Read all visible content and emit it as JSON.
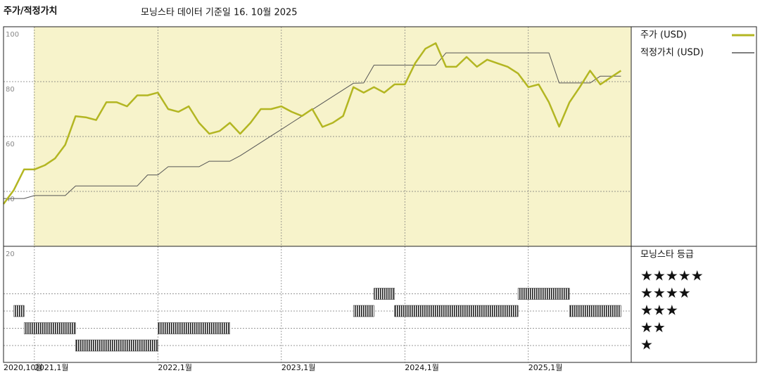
{
  "chart_data": {
    "type": "line",
    "title": "주가/적정가치",
    "subtitle": "모닝스타 데이터 기준일 16. 10월 2025",
    "x": [
      "2020-10",
      "2020-11",
      "2020-12",
      "2021-01",
      "2021-02",
      "2021-03",
      "2021-04",
      "2021-05",
      "2021-06",
      "2021-07",
      "2021-08",
      "2021-09",
      "2021-10",
      "2021-11",
      "2021-12",
      "2022-01",
      "2022-02",
      "2022-03",
      "2022-04",
      "2022-05",
      "2022-06",
      "2022-07",
      "2022-08",
      "2022-09",
      "2022-10",
      "2022-11",
      "2022-12",
      "2023-01",
      "2023-02",
      "2023-03",
      "2023-04",
      "2023-05",
      "2023-06",
      "2023-07",
      "2023-08",
      "2023-09",
      "2023-10",
      "2023-11",
      "2023-12",
      "2024-01",
      "2024-02",
      "2024-03",
      "2024-04",
      "2024-05",
      "2024-06",
      "2024-07",
      "2024-08",
      "2024-09",
      "2024-10",
      "2024-11",
      "2024-12",
      "2025-01",
      "2025-02",
      "2025-03",
      "2025-04",
      "2025-05",
      "2025-06",
      "2025-07",
      "2025-08",
      "2025-09",
      "2025-10"
    ],
    "series": [
      {
        "name": "주가 (USD)",
        "color": "#b3b622",
        "width": 2.5,
        "values": [
          35.4,
          40.5,
          48,
          48,
          49.5,
          52,
          57,
          67.4,
          67,
          66,
          72.5,
          72.5,
          71,
          75,
          75,
          76,
          70,
          69,
          71,
          65,
          61,
          62,
          65,
          61,
          65,
          70,
          70,
          71,
          69,
          67.5,
          70,
          63.5,
          65,
          67.5,
          78,
          76,
          78,
          76,
          79,
          79,
          86.7,
          92,
          94,
          85.4,
          85.4,
          89,
          85.4,
          88,
          86.7,
          85.4,
          83,
          78,
          79,
          72.5,
          63.6,
          72.5,
          78,
          84,
          79,
          81.5,
          84
        ]
      },
      {
        "name": "적정가치 (USD)",
        "color": "#555555",
        "width": 1,
        "values": [
          37.4,
          37.4,
          37.4,
          38.5,
          38.5,
          38.5,
          38.5,
          42,
          42,
          42,
          42,
          42,
          42,
          42,
          46,
          46,
          49,
          49,
          49,
          49,
          51,
          51,
          51,
          53,
          55.4,
          57.8,
          60.2,
          62.6,
          65,
          67.4,
          69.8,
          72.2,
          74.6,
          77,
          79.4,
          79.5,
          86,
          86,
          86,
          86,
          86,
          86,
          86,
          90.5,
          90.5,
          90.5,
          90.5,
          90.5,
          90.5,
          90.5,
          90.5,
          90.5,
          90.5,
          90.5,
          79.5,
          79.5,
          79.5,
          79.5,
          82,
          82,
          82
        ]
      }
    ],
    "xlim": [
      "2020-10",
      "2025-11"
    ],
    "xticks": [
      {
        "value": "2020-10",
        "label": "2020,10월"
      },
      {
        "value": "2021-01",
        "label": "2021,1월"
      },
      {
        "value": "2022-01",
        "label": "2022,1월"
      },
      {
        "value": "2023-01",
        "label": "2023,1월"
      },
      {
        "value": "2024-01",
        "label": "2024,1월"
      },
      {
        "value": "2025-01",
        "label": "2025,1월"
      }
    ],
    "ylim": [
      20,
      100
    ],
    "yticks": [
      20,
      40,
      60,
      80,
      100
    ],
    "grid": true,
    "legend": "right",
    "ratings": {
      "title": "모닝스타 등급",
      "levels": [
        {
          "stars": 5,
          "label": "★★★★★"
        },
        {
          "stars": 4,
          "label": "★★★★"
        },
        {
          "stars": 3,
          "label": "★★★"
        },
        {
          "stars": 2,
          "label": "★★"
        },
        {
          "stars": 1,
          "label": "★"
        }
      ],
      "color": "#222222",
      "periods": [
        {
          "start": "2020-11",
          "end": "2020-12",
          "stars": 3
        },
        {
          "start": "2020-12",
          "end": "2021-05",
          "stars": 2
        },
        {
          "start": "2021-05",
          "end": "2022-01",
          "stars": 1
        },
        {
          "start": "2022-01",
          "end": "2022-08",
          "stars": 2
        },
        {
          "start": "2023-08",
          "end": "2023-10",
          "stars": 3
        },
        {
          "start": "2023-10",
          "end": "2023-12",
          "stars": 4
        },
        {
          "start": "2023-12",
          "end": "2024-12",
          "stars": 3
        },
        {
          "start": "2024-12",
          "end": "2025-05",
          "stars": 4
        },
        {
          "start": "2025-05",
          "end": "2025-10",
          "stars": 3
        }
      ]
    }
  }
}
